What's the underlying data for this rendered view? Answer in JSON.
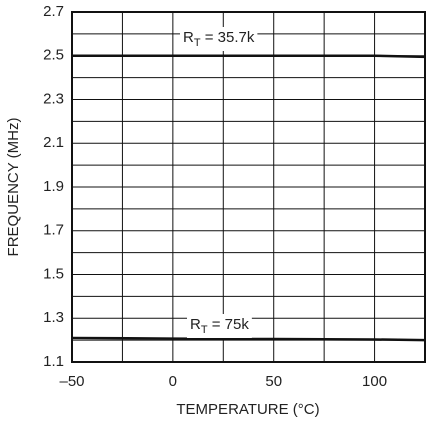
{
  "chart_data": {
    "type": "line",
    "xlabel": "TEMPERATURE (°C)",
    "ylabel": "FREQUENCY (MHz)",
    "x": [
      -50,
      0,
      50,
      100,
      125
    ],
    "series": [
      {
        "name": "RT = 35.7k",
        "label": [
          "R",
          "T",
          " = 35.7k"
        ],
        "color": "#111111",
        "values": [
          2.5,
          2.5,
          2.5,
          2.5,
          2.495
        ]
      },
      {
        "name": "RT = 75k",
        "label": [
          "R",
          "T",
          " = 75k"
        ],
        "color": "#111111",
        "values": [
          1.21,
          1.207,
          1.205,
          1.203,
          1.2
        ]
      }
    ],
    "xlim": [
      -50,
      125
    ],
    "ylim": [
      1.1,
      2.7
    ],
    "xticks": [
      {
        "value": -50,
        "label": "–50"
      },
      0,
      50,
      100
    ],
    "yticks": [
      1.1,
      1.3,
      1.5,
      1.7,
      1.9,
      2.1,
      2.3,
      2.5,
      2.7
    ],
    "xgrid_minor": [
      -25,
      25,
      75,
      125
    ],
    "ygrid_minor": [
      1.2,
      1.4,
      1.6,
      1.8,
      2.0,
      2.2,
      2.4,
      2.6
    ],
    "grid": true
  }
}
